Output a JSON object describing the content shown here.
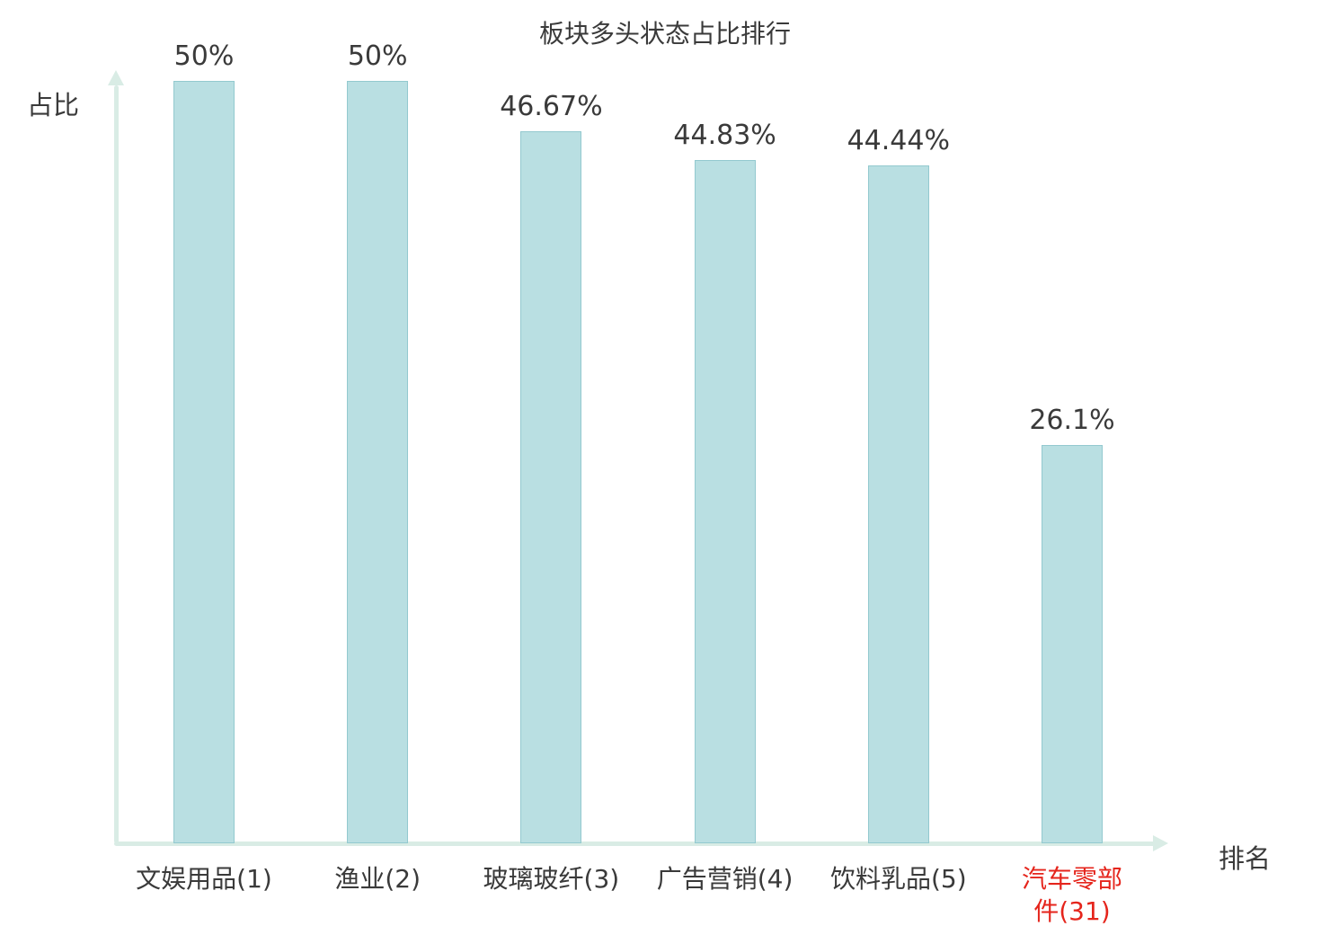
{
  "colors": {
    "background": "#ffffff",
    "bar_fill": "#b9dfe2",
    "bar_border": "#93c9cf",
    "axis": "#d9ece5",
    "text": "#3a3a3a",
    "highlight": "#e5251c"
  },
  "chart_data": {
    "type": "bar",
    "title": "板块多头状态占比排行",
    "xlabel": "排名",
    "ylabel": "占比",
    "categories": [
      "文娱用品(1)",
      "渔业(2)",
      "玻璃玻纤(3)",
      "广告营销(4)",
      "饮料乳品(5)",
      "汽车零部件(31)"
    ],
    "values": [
      50,
      50,
      46.67,
      44.83,
      44.44,
      26.1
    ],
    "value_labels": [
      "50%",
      "50%",
      "46.67%",
      "44.83%",
      "44.44%",
      "26.1%"
    ],
    "highlighted_category_index": 5,
    "ylim": [
      0,
      50
    ],
    "grid": false,
    "legend": false,
    "bar_color": "#b9dfe2",
    "highlight_label_color": "#e5251c"
  }
}
